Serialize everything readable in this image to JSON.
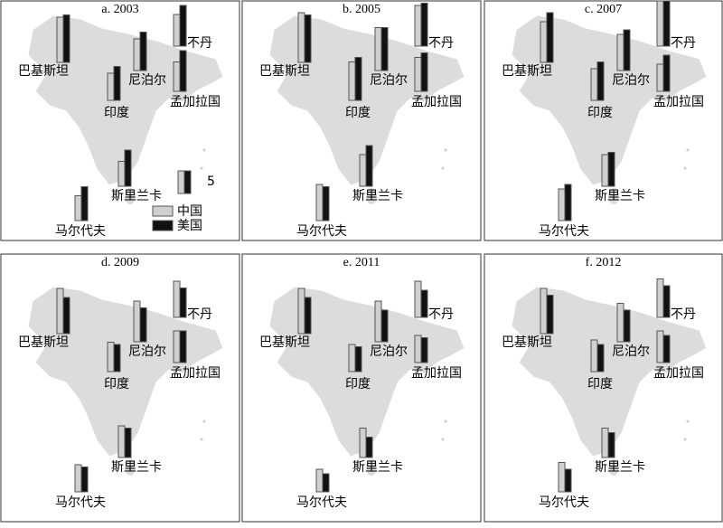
{
  "series_names": [
    "中国",
    "美国"
  ],
  "countries": [
    "巴基斯坦",
    "尼泊尔",
    "不丹",
    "孟加拉国",
    "印度",
    "斯里兰卡",
    "马尔代夫"
  ],
  "scale": 5,
  "panels": [
    {
      "title": "a. 2003",
      "values": [
        [
          10,
          10.5
        ],
        [
          7,
          8.5
        ],
        [
          7,
          9
        ],
        [
          6.5,
          9
        ],
        [
          6,
          7.5
        ],
        [
          5.5,
          8
        ],
        [
          5.5,
          7.5
        ]
      ]
    },
    {
      "title": "b. 2005",
      "values": [
        [
          11,
          10.5
        ],
        [
          9.5,
          9.5
        ],
        [
          9,
          9.5
        ],
        [
          7.5,
          8.5
        ],
        [
          8.5,
          9.5
        ],
        [
          7,
          9
        ],
        [
          8,
          7.5
        ]
      ]
    },
    {
      "title": "c. 2007",
      "values": [
        [
          9,
          11
        ],
        [
          8,
          9
        ],
        [
          10,
          10
        ],
        [
          6,
          8
        ],
        [
          7,
          8.5
        ],
        [
          7,
          7.5
        ],
        [
          7,
          8
        ]
      ]
    },
    {
      "title": "d. 2009",
      "values": [
        [
          10,
          8
        ],
        [
          9,
          7.5
        ],
        [
          8,
          6.5
        ],
        [
          7,
          7
        ],
        [
          6.5,
          6
        ],
        [
          7,
          6.5
        ],
        [
          6,
          5.5
        ]
      ]
    },
    {
      "title": "e. 2011",
      "values": [
        [
          10,
          8
        ],
        [
          9,
          7
        ],
        [
          8,
          6
        ],
        [
          6,
          5.5
        ],
        [
          6,
          5.5
        ],
        [
          6.5,
          4.5
        ],
        [
          5,
          4
        ]
      ]
    },
    {
      "title": "f. 2012",
      "values": [
        [
          10,
          8.5
        ],
        [
          8.5,
          7
        ],
        [
          8.5,
          7
        ],
        [
          7,
          6
        ],
        [
          7,
          6
        ],
        [
          6.5,
          5.5
        ],
        [
          6.5,
          5
        ]
      ]
    }
  ]
}
